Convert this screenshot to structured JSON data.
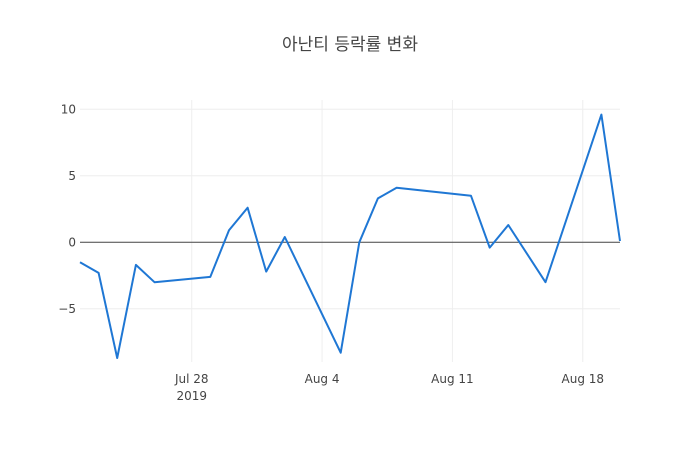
{
  "chart_data": {
    "type": "line",
    "title": "아난티 등락률 변화",
    "xlabel": "",
    "ylabel": "",
    "x_ticks": [
      {
        "x": "2019-07-28",
        "label": "Jul 28",
        "sublabel": "2019"
      },
      {
        "x": "2019-08-04",
        "label": "Aug 4",
        "sublabel": ""
      },
      {
        "x": "2019-08-11",
        "label": "Aug 11",
        "sublabel": ""
      },
      {
        "x": "2019-08-18",
        "label": "Aug 18",
        "sublabel": ""
      }
    ],
    "y_ticks": [
      {
        "y": 10,
        "label": "10"
      },
      {
        "y": 5,
        "label": "5"
      },
      {
        "y": 0,
        "label": "0"
      },
      {
        "y": -5,
        "label": "−5"
      }
    ],
    "xlim": [
      "2019-07-22",
      "2019-08-20"
    ],
    "ylim": [
      -9,
      10.7
    ],
    "grid": true,
    "zero_line": true,
    "series": [
      {
        "color": "#1f77d4",
        "x": [
          "2019-07-22",
          "2019-07-23",
          "2019-07-24",
          "2019-07-25",
          "2019-07-26",
          "2019-07-29",
          "2019-07-30",
          "2019-07-31",
          "2019-08-01",
          "2019-08-02",
          "2019-08-05",
          "2019-08-06",
          "2019-08-07",
          "2019-08-08",
          "2019-08-12",
          "2019-08-13",
          "2019-08-14",
          "2019-08-16",
          "2019-08-19",
          "2019-08-20"
        ],
        "y": [
          -1.5,
          -2.3,
          -8.7,
          -1.7,
          -3.0,
          -2.6,
          0.9,
          2.6,
          -2.2,
          0.4,
          -8.3,
          0.0,
          3.3,
          4.1,
          3.5,
          -0.4,
          1.3,
          -3.0,
          9.6,
          0.1
        ]
      }
    ]
  }
}
